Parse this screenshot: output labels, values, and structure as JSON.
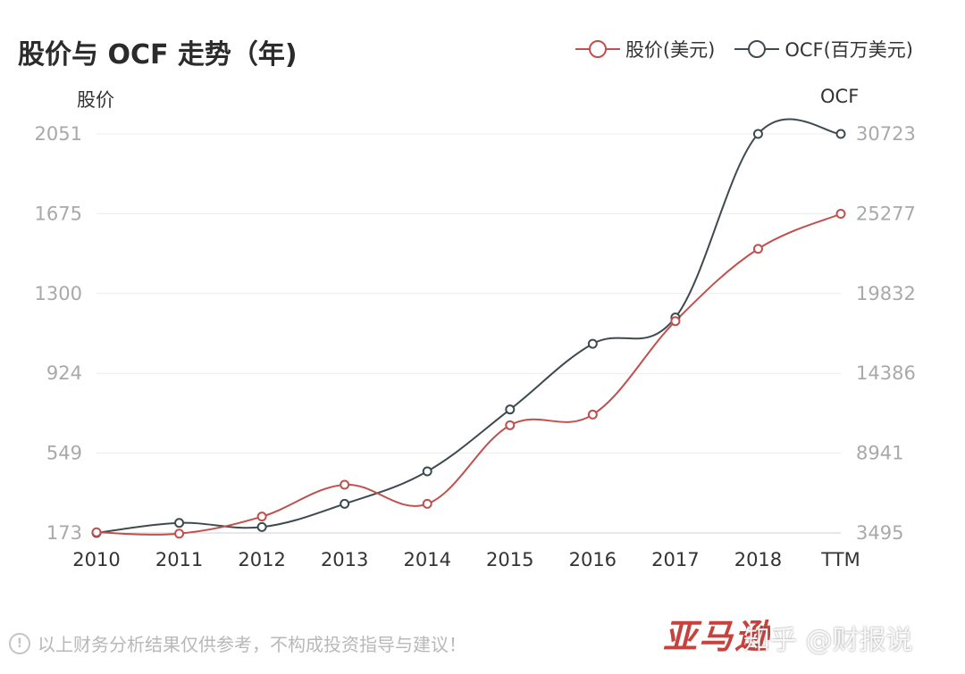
{
  "chart_data": {
    "type": "line",
    "title": "股价与 OCF 走势（年)",
    "categories": [
      "2010",
      "2011",
      "2012",
      "2013",
      "2014",
      "2015",
      "2016",
      "2017",
      "2018",
      "TTM"
    ],
    "series": [
      {
        "name": "股价(美元)",
        "axis": "left",
        "color": "#c0504d",
        "values": [
          176,
          170,
          250,
          400,
          310,
          680,
          730,
          1170,
          1510,
          1675
        ]
      },
      {
        "name": "OCF(百万美元)",
        "axis": "right",
        "color": "#3d4a4f",
        "values": [
          3495,
          4180,
          3900,
          5480,
          7700,
          11920,
          16400,
          18200,
          30723,
          30723
        ]
      }
    ],
    "y_left": {
      "name": "股价",
      "ticks": [
        "173",
        "549",
        "924",
        "1300",
        "1675",
        "2051"
      ],
      "ylim": [
        173,
        2051
      ]
    },
    "y_right": {
      "name": "OCF",
      "ticks": [
        "3495",
        "8941",
        "14386",
        "19832",
        "25277",
        "30723"
      ],
      "ylim": [
        3495,
        30723
      ]
    },
    "grid": true,
    "legend_position": "top-right"
  },
  "footer": {
    "disclaimer": "以上财务分析结果仅供参考，不构成投资指导与建议！",
    "info_icon": "info-icon",
    "brand_text": "亚马逊",
    "watermark": "知乎 @财报说"
  }
}
